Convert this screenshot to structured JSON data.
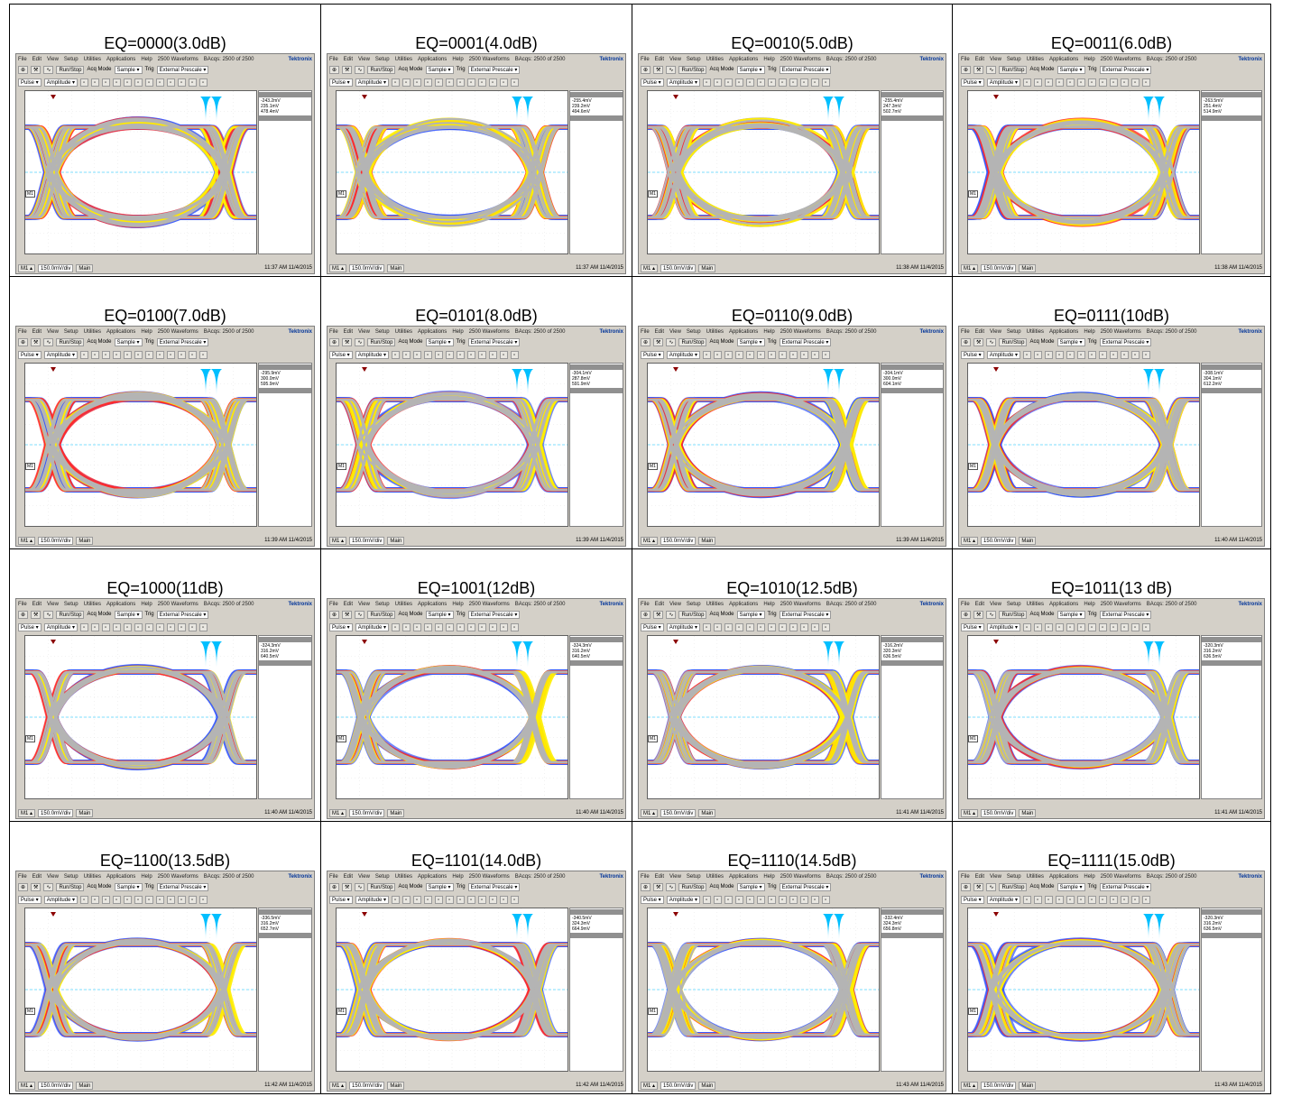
{
  "cells": [
    {
      "title": "EQ=0000(3.0dB)",
      "time": "11:37 AM 11/4/2015",
      "eye": 0.62,
      "jitter": 0.8,
      "m1": "-243.2mV",
      "m2": "235.1mV",
      "dv": "478.4mV"
    },
    {
      "title": "EQ=0001(4.0dB)",
      "time": "11:37 AM 11/4/2015",
      "eye": 0.64,
      "jitter": 0.78,
      "m1": "-255.4mV",
      "m2": "239.2mV",
      "dv": "494.6mV"
    },
    {
      "title": "EQ=0010(5.0dB)",
      "time": "11:38 AM 11/4/2015",
      "eye": 0.68,
      "jitter": 0.72,
      "m1": "-255.4mV",
      "m2": "247.3mV",
      "dv": "502.7mV"
    },
    {
      "title": "EQ=0011(6.0dB)",
      "time": "11:38 AM 11/4/2015",
      "eye": 0.7,
      "jitter": 0.68,
      "m1": "-263.5mV",
      "m2": "251.4mV",
      "dv": "514.9mV"
    },
    {
      "title": "EQ=0100(7.0dB)",
      "time": "11:39 AM 11/4/2015",
      "eye": 0.74,
      "jitter": 0.6,
      "m1": "-295.9mV",
      "m2": "300.0mV",
      "dv": "595.9mV"
    },
    {
      "title": "EQ=0101(8.0dB)",
      "time": "11:39 AM 11/4/2015",
      "eye": 0.76,
      "jitter": 0.56,
      "m1": "-304.1mV",
      "m2": "287.8mV",
      "dv": "591.9mV"
    },
    {
      "title": "EQ=0110(9.0dB)",
      "time": "11:39 AM 11/4/2015",
      "eye": 0.78,
      "jitter": 0.5,
      "m1": "-304.1mV",
      "m2": "300.0mV",
      "dv": "604.1mV"
    },
    {
      "title": "EQ=0111(10dB)",
      "time": "11:40 AM 11/4/2015",
      "eye": 0.8,
      "jitter": 0.46,
      "m1": "-308.1mV",
      "m2": "304.1mV",
      "dv": "612.2mV"
    },
    {
      "title": "EQ=1000(11dB)",
      "time": "11:40 AM 11/4/2015",
      "eye": 0.82,
      "jitter": 0.42,
      "m1": "-324.3mV",
      "m2": "316.2mV",
      "dv": "640.5mV"
    },
    {
      "title": "EQ=1001(12dB)",
      "time": "11:40 AM 11/4/2015",
      "eye": 0.83,
      "jitter": 0.4,
      "m1": "-324.3mV",
      "m2": "316.2mV",
      "dv": "640.5mV"
    },
    {
      "title": "EQ=1010(12.5dB)",
      "time": "11:41 AM 11/4/2015",
      "eye": 0.84,
      "jitter": 0.4,
      "m1": "-316.2mV",
      "m2": "320.3mV",
      "dv": "636.5mV"
    },
    {
      "title": "EQ=1011(13 dB)",
      "time": "11:41 AM 11/4/2015",
      "eye": 0.85,
      "jitter": 0.42,
      "m1": "-320.3mV",
      "m2": "316.2mV",
      "dv": "636.5mV"
    },
    {
      "title": "EQ=1100(13.5dB)",
      "time": "11:42 AM 11/4/2015",
      "eye": 0.86,
      "jitter": 0.48,
      "m1": "-336.5mV",
      "m2": "316.2mV",
      "dv": "652.7mV"
    },
    {
      "title": "EQ=1101(14.0dB)",
      "time": "11:42 AM 11/4/2015",
      "eye": 0.86,
      "jitter": 0.52,
      "m1": "-340.5mV",
      "m2": "324.3mV",
      "dv": "664.9mV"
    },
    {
      "title": "EQ=1110(14.5dB)",
      "time": "11:43 AM 11/4/2015",
      "eye": 0.87,
      "jitter": 0.58,
      "m1": "-332.4mV",
      "m2": "324.3mV",
      "dv": "656.8mV"
    },
    {
      "title": "EQ=1111(15.0dB)",
      "time": "11:43 AM 11/4/2015",
      "eye": 0.88,
      "jitter": 0.64,
      "m1": "-320.3mV",
      "m2": "316.2mV",
      "dv": "636.5mV"
    }
  ],
  "scope": {
    "menu": [
      "File",
      "Edit",
      "View",
      "Setup",
      "Utilities",
      "Applications",
      "Help"
    ],
    "waveforms": "2500 Waveforms",
    "acqs": "BAcqs: 2500 of 2500",
    "brand": "Tektronix",
    "runstop": "Run/Stop",
    "acqmode": "Acq Mode",
    "sample": "Sample",
    "trig": "Trig",
    "prescale": "External Prescale",
    "pulse": "Pulse",
    "amplitude": "Amplitude",
    "m1": "M1",
    "scale": "150.0mV/div",
    "main": "Main"
  },
  "colors": {
    "accent": "#00bfff",
    "gray": "#b4b4b4",
    "yellow": "#ffee00",
    "red": "#ff2a2a",
    "blue": "#3355ff"
  }
}
